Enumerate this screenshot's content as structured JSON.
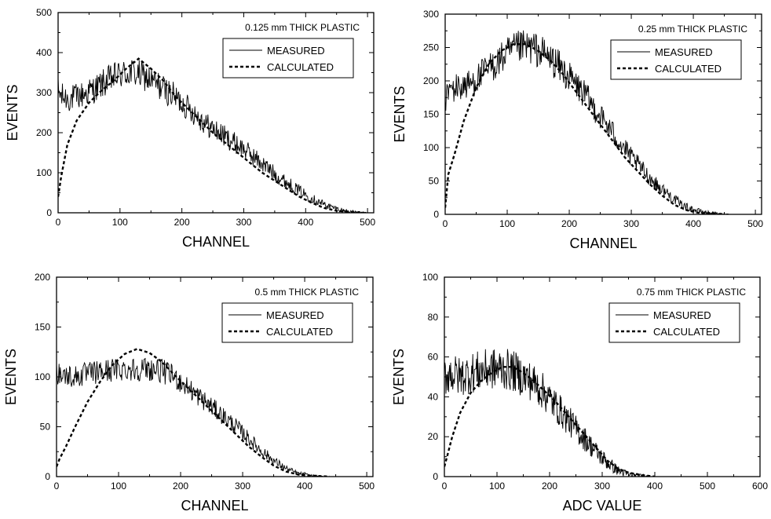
{
  "chart_data": [
    {
      "type": "line",
      "title": "0.125 mm THICK PLASTIC",
      "xlabel": "CHANNEL",
      "ylabel": "EVENTS",
      "xlim": [
        0,
        510
      ],
      "ylim": [
        0,
        500
      ],
      "xticks": [
        0,
        100,
        200,
        300,
        400,
        500
      ],
      "yticks": [
        0,
        100,
        200,
        300,
        400,
        500
      ],
      "legend_position": "top-right",
      "series": [
        {
          "name": "MEASURED",
          "style": "solid",
          "noise": 38,
          "x": [
            0,
            5,
            20,
            40,
            60,
            80,
            100,
            120,
            140,
            160,
            180,
            200,
            220,
            240,
            260,
            280,
            300,
            320,
            340,
            360,
            380,
            400,
            420,
            440,
            460,
            480,
            500
          ],
          "values": [
            305,
            290,
            285,
            295,
            310,
            330,
            345,
            350,
            340,
            320,
            300,
            275,
            250,
            220,
            200,
            180,
            160,
            135,
            110,
            85,
            65,
            45,
            28,
            15,
            6,
            2,
            0
          ]
        },
        {
          "name": "CALCULATED",
          "style": "dashed",
          "x": [
            0,
            5,
            15,
            30,
            50,
            70,
            90,
            110,
            130,
            150,
            170,
            190,
            210,
            230,
            250,
            270,
            290,
            310,
            330,
            350,
            370,
            390,
            410,
            430,
            450,
            470,
            490
          ],
          "values": [
            40,
            90,
            170,
            230,
            275,
            305,
            330,
            360,
            385,
            360,
            330,
            290,
            260,
            230,
            200,
            175,
            150,
            125,
            100,
            80,
            60,
            40,
            25,
            12,
            5,
            2,
            0
          ]
        }
      ]
    },
    {
      "type": "line",
      "title": "0.25 mm THICK PLASTIC",
      "xlabel": "CHANNEL",
      "ylabel": "EVENTS",
      "xlim": [
        0,
        510
      ],
      "ylim": [
        0,
        300
      ],
      "xticks": [
        0,
        100,
        200,
        300,
        400,
        500
      ],
      "yticks": [
        0,
        50,
        100,
        150,
        200,
        250,
        300
      ],
      "legend_position": "top-right",
      "series": [
        {
          "name": "MEASURED",
          "style": "solid",
          "noise": 24,
          "x": [
            0,
            5,
            20,
            40,
            60,
            80,
            100,
            120,
            140,
            160,
            180,
            200,
            220,
            240,
            260,
            280,
            300,
            320,
            340,
            360,
            380,
            400,
            420,
            440,
            460
          ],
          "values": [
            170,
            185,
            190,
            195,
            210,
            225,
            240,
            250,
            250,
            240,
            225,
            205,
            185,
            160,
            135,
            110,
            85,
            65,
            45,
            30,
            15,
            7,
            3,
            1,
            0
          ]
        },
        {
          "name": "CALCULATED",
          "style": "dashed",
          "x": [
            0,
            5,
            15,
            30,
            50,
            70,
            90,
            110,
            130,
            150,
            170,
            190,
            210,
            230,
            250,
            270,
            290,
            310,
            330,
            350,
            370,
            390,
            410,
            430,
            450
          ],
          "values": [
            10,
            60,
            90,
            140,
            190,
            225,
            245,
            255,
            255,
            245,
            230,
            210,
            185,
            160,
            135,
            110,
            85,
            65,
            45,
            28,
            14,
            6,
            2,
            1,
            0
          ]
        }
      ]
    },
    {
      "type": "line",
      "title": "0.5 mm THICK PLASTIC",
      "xlabel": "CHANNEL",
      "ylabel": "EVENTS",
      "xlim": [
        0,
        510
      ],
      "ylim": [
        0,
        200
      ],
      "xticks": [
        0,
        100,
        200,
        300,
        400,
        500
      ],
      "yticks": [
        0,
        50,
        100,
        150,
        200
      ],
      "legend_position": "top-right",
      "series": [
        {
          "name": "MEASURED",
          "style": "solid",
          "noise": 14,
          "x": [
            0,
            10,
            30,
            50,
            70,
            90,
            110,
            130,
            150,
            170,
            190,
            210,
            230,
            250,
            270,
            290,
            310,
            330,
            350,
            370,
            390,
            410,
            430
          ],
          "values": [
            105,
            102,
            100,
            103,
            105,
            107,
            108,
            108,
            108,
            106,
            100,
            90,
            80,
            70,
            60,
            50,
            38,
            26,
            16,
            8,
            3,
            1,
            0
          ]
        },
        {
          "name": "CALCULATED",
          "style": "dashed",
          "x": [
            0,
            5,
            15,
            30,
            50,
            70,
            90,
            110,
            130,
            150,
            170,
            190,
            210,
            230,
            250,
            270,
            290,
            310,
            330,
            350,
            370,
            390,
            410,
            440
          ],
          "values": [
            10,
            18,
            30,
            50,
            75,
            95,
            112,
            123,
            128,
            124,
            115,
            102,
            90,
            78,
            66,
            54,
            42,
            30,
            20,
            11,
            5,
            2,
            1,
            0
          ]
        }
      ]
    },
    {
      "type": "line",
      "title": "0.75 mm THICK PLASTIC",
      "xlabel": "ADC VALUE",
      "ylabel": "EVENTS",
      "xlim": [
        0,
        600
      ],
      "ylim": [
        0,
        100
      ],
      "xticks": [
        0,
        100,
        200,
        300,
        400,
        500,
        600
      ],
      "yticks": [
        0,
        20,
        40,
        60,
        80,
        100
      ],
      "legend_position": "top-right",
      "series": [
        {
          "name": "MEASURED",
          "style": "solid",
          "noise": 12,
          "x": [
            0,
            10,
            30,
            50,
            70,
            90,
            110,
            130,
            150,
            170,
            190,
            210,
            230,
            250,
            270,
            290,
            310,
            330,
            350,
            370,
            390,
            410
          ],
          "values": [
            50,
            52,
            50,
            52,
            53,
            54,
            54,
            53,
            50,
            47,
            42,
            36,
            30,
            24,
            18,
            12,
            7,
            3,
            1,
            0.5,
            0,
            0
          ]
        },
        {
          "name": "CALCULATED",
          "style": "dashed",
          "x": [
            0,
            5,
            15,
            30,
            50,
            70,
            90,
            110,
            130,
            150,
            170,
            190,
            210,
            230,
            250,
            270,
            290,
            310,
            330,
            350,
            370,
            400
          ],
          "values": [
            5,
            10,
            20,
            32,
            42,
            48,
            52,
            55,
            55,
            52,
            48,
            43,
            38,
            32,
            26,
            20,
            14,
            8,
            4,
            2,
            1,
            0
          ]
        }
      ]
    }
  ]
}
